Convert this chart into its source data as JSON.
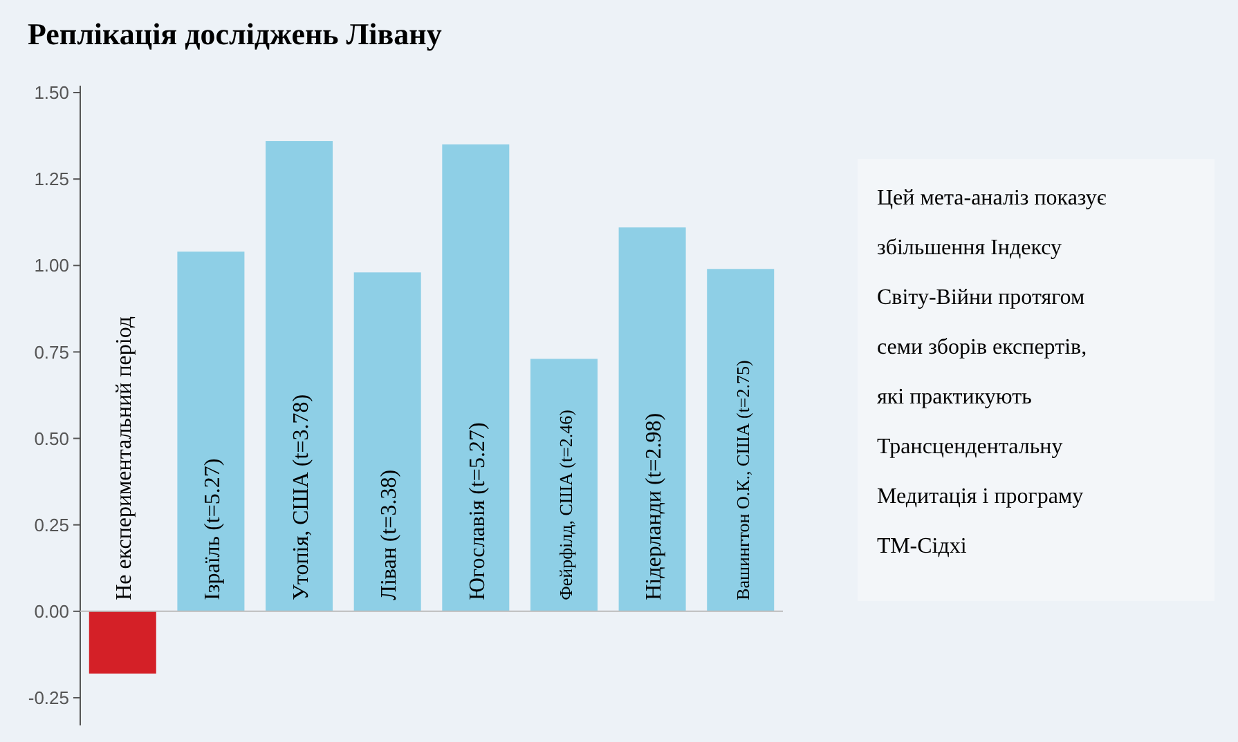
{
  "chart_data": {
    "type": "bar",
    "title": "Реплікація досліджень Лівану",
    "categories": [
      "Не експериментальний період",
      "Ізраїль (t=5.27)",
      "Утопія, США (t=3.78)",
      "Ліван (t=3.38)",
      "Югославія (t=5.27)",
      "Фейрфілд, США (t=2.46)",
      "Нідерланди (t=2.98)",
      "Вашингтон О.К., США (t=2.75)"
    ],
    "values": [
      -0.18,
      1.04,
      1.36,
      0.98,
      1.35,
      0.73,
      1.11,
      0.99
    ],
    "colors": [
      "#d42027",
      "#8ecfe6",
      "#8ecfe6",
      "#8ecfe6",
      "#8ecfe6",
      "#8ecfe6",
      "#8ecfe6",
      "#8ecfe6"
    ],
    "ylim": [
      -0.33,
      1.52
    ],
    "yticks": [
      {
        "value": -0.25,
        "label": "-0.25"
      },
      {
        "value": 0,
        "label": "0.00"
      },
      {
        "value": 0.25,
        "label": "0.25"
      },
      {
        "value": 0.5,
        "label": "0.50"
      },
      {
        "value": 0.75,
        "label": "0.75"
      },
      {
        "value": 1,
        "label": "1.00"
      },
      {
        "value": 1.25,
        "label": "1.25"
      },
      {
        "value": 1.5,
        "label": "1.50"
      }
    ],
    "grid": false,
    "annotations": [
      "Цей мета-аналіз показує\nзбільшення  Індексу\nСвіту-Війни протягом\nсеми зборів експертів,\nякі практикують\nТрансцендентальну\nМедитація і програму\nТМ-Сідхі"
    ]
  }
}
